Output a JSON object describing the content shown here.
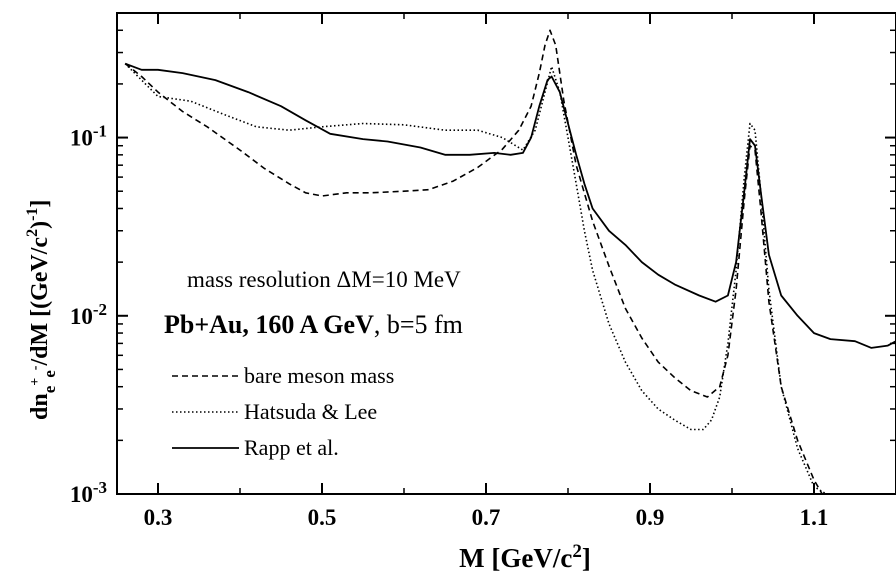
{
  "chart_data": {
    "type": "line",
    "title": "",
    "xlabel": "M [GeV/c²]",
    "ylabel": {
      "main": "dn",
      "sub1": "e",
      "sup1": "+",
      "sub2": "e",
      "sup2": "-",
      "after": "/dM  [(GeV/c",
      "exp": "2",
      "close": ")",
      "exp2": "-1",
      "end": "]"
    },
    "xlim": [
      0.25,
      1.2
    ],
    "ylim": [
      0.001,
      0.5
    ],
    "y_scale": "log",
    "x_ticks": [
      {
        "v": 0.3,
        "label": "0.3"
      },
      {
        "v": 0.5,
        "label": "0.5"
      },
      {
        "v": 0.7,
        "label": "0.7"
      },
      {
        "v": 0.9,
        "label": "0.9"
      },
      {
        "v": 1.1,
        "label": "1.1"
      }
    ],
    "y_ticks": [
      {
        "v": 0.001,
        "base": "10",
        "exp": "-3"
      },
      {
        "v": 0.01,
        "base": "10",
        "exp": "-2"
      },
      {
        "v": 0.1,
        "base": "10",
        "exp": "-1"
      }
    ],
    "legend_position": "lower-left",
    "annotations": {
      "resolution": "mass resolution  ΔM=10 MeV",
      "system_bold": "Pb+Au, 160 A GeV",
      "system_rest": ", b=5 fm"
    },
    "series": [
      {
        "name": "bare meson mass",
        "dash": "6,4",
        "points": [
          [
            0.26,
            0.26
          ],
          [
            0.28,
            0.22
          ],
          [
            0.3,
            0.18
          ],
          [
            0.33,
            0.14
          ],
          [
            0.36,
            0.115
          ],
          [
            0.4,
            0.085
          ],
          [
            0.43,
            0.067
          ],
          [
            0.46,
            0.055
          ],
          [
            0.48,
            0.049
          ],
          [
            0.5,
            0.047
          ],
          [
            0.53,
            0.049
          ],
          [
            0.56,
            0.049
          ],
          [
            0.6,
            0.05
          ],
          [
            0.63,
            0.051
          ],
          [
            0.66,
            0.057
          ],
          [
            0.69,
            0.068
          ],
          [
            0.72,
            0.086
          ],
          [
            0.74,
            0.11
          ],
          [
            0.755,
            0.15
          ],
          [
            0.765,
            0.23
          ],
          [
            0.772,
            0.33
          ],
          [
            0.778,
            0.4
          ],
          [
            0.785,
            0.33
          ],
          [
            0.795,
            0.16
          ],
          [
            0.81,
            0.07
          ],
          [
            0.83,
            0.034
          ],
          [
            0.85,
            0.019
          ],
          [
            0.87,
            0.011
          ],
          [
            0.89,
            0.0075
          ],
          [
            0.91,
            0.0055
          ],
          [
            0.93,
            0.0045
          ],
          [
            0.95,
            0.0038
          ],
          [
            0.97,
            0.0035
          ],
          [
            0.985,
            0.004
          ],
          [
            0.995,
            0.006
          ],
          [
            1.005,
            0.014
          ],
          [
            1.015,
            0.045
          ],
          [
            1.022,
            0.09
          ],
          [
            1.028,
            0.085
          ],
          [
            1.035,
            0.04
          ],
          [
            1.045,
            0.012
          ],
          [
            1.06,
            0.004
          ],
          [
            1.08,
            0.002
          ],
          [
            1.1,
            0.0012
          ],
          [
            1.11,
            0.001
          ]
        ]
      },
      {
        "name": "Hatsuda & Lee",
        "dash": "1.5,2.5",
        "points": [
          [
            0.26,
            0.26
          ],
          [
            0.28,
            0.21
          ],
          [
            0.3,
            0.17
          ],
          [
            0.34,
            0.16
          ],
          [
            0.38,
            0.135
          ],
          [
            0.42,
            0.115
          ],
          [
            0.46,
            0.11
          ],
          [
            0.5,
            0.115
          ],
          [
            0.55,
            0.12
          ],
          [
            0.6,
            0.118
          ],
          [
            0.65,
            0.11
          ],
          [
            0.69,
            0.11
          ],
          [
            0.72,
            0.1
          ],
          [
            0.745,
            0.085
          ],
          [
            0.76,
            0.11
          ],
          [
            0.772,
            0.18
          ],
          [
            0.78,
            0.25
          ],
          [
            0.79,
            0.18
          ],
          [
            0.8,
            0.1
          ],
          [
            0.81,
            0.055
          ],
          [
            0.82,
            0.03
          ],
          [
            0.83,
            0.018
          ],
          [
            0.85,
            0.009
          ],
          [
            0.87,
            0.0055
          ],
          [
            0.89,
            0.0038
          ],
          [
            0.91,
            0.003
          ],
          [
            0.93,
            0.0026
          ],
          [
            0.95,
            0.0023
          ],
          [
            0.965,
            0.0023
          ],
          [
            0.975,
            0.0026
          ],
          [
            0.985,
            0.0035
          ],
          [
            0.995,
            0.007
          ],
          [
            1.005,
            0.018
          ],
          [
            1.015,
            0.06
          ],
          [
            1.022,
            0.12
          ],
          [
            1.028,
            0.11
          ],
          [
            1.035,
            0.05
          ],
          [
            1.045,
            0.014
          ],
          [
            1.06,
            0.004
          ],
          [
            1.08,
            0.0018
          ],
          [
            1.1,
            0.0011
          ],
          [
            1.115,
            0.001
          ]
        ]
      },
      {
        "name": "Rapp et al.",
        "dash": "",
        "points": [
          [
            0.26,
            0.26
          ],
          [
            0.28,
            0.24
          ],
          [
            0.3,
            0.24
          ],
          [
            0.33,
            0.23
          ],
          [
            0.37,
            0.21
          ],
          [
            0.41,
            0.18
          ],
          [
            0.45,
            0.15
          ],
          [
            0.48,
            0.125
          ],
          [
            0.51,
            0.105
          ],
          [
            0.55,
            0.098
          ],
          [
            0.58,
            0.095
          ],
          [
            0.62,
            0.088
          ],
          [
            0.65,
            0.08
          ],
          [
            0.68,
            0.08
          ],
          [
            0.71,
            0.082
          ],
          [
            0.73,
            0.08
          ],
          [
            0.745,
            0.082
          ],
          [
            0.755,
            0.1
          ],
          [
            0.765,
            0.15
          ],
          [
            0.775,
            0.21
          ],
          [
            0.78,
            0.22
          ],
          [
            0.79,
            0.18
          ],
          [
            0.8,
            0.12
          ],
          [
            0.81,
            0.08
          ],
          [
            0.82,
            0.055
          ],
          [
            0.83,
            0.04
          ],
          [
            0.85,
            0.03
          ],
          [
            0.87,
            0.025
          ],
          [
            0.89,
            0.02
          ],
          [
            0.91,
            0.017
          ],
          [
            0.93,
            0.015
          ],
          [
            0.96,
            0.013
          ],
          [
            0.98,
            0.012
          ],
          [
            0.995,
            0.013
          ],
          [
            1.005,
            0.02
          ],
          [
            1.015,
            0.05
          ],
          [
            1.022,
            0.098
          ],
          [
            1.028,
            0.09
          ],
          [
            1.035,
            0.05
          ],
          [
            1.045,
            0.022
          ],
          [
            1.06,
            0.013
          ],
          [
            1.08,
            0.01
          ],
          [
            1.1,
            0.008
          ],
          [
            1.12,
            0.0074
          ],
          [
            1.15,
            0.0072
          ],
          [
            1.17,
            0.0066
          ],
          [
            1.19,
            0.0068
          ],
          [
            1.2,
            0.0072
          ]
        ]
      }
    ]
  }
}
